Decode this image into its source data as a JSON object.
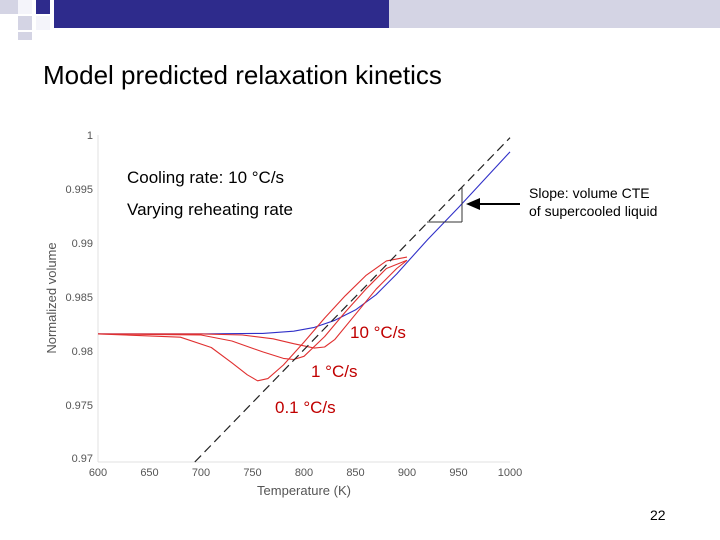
{
  "slide": {
    "title": "Model predicted relaxation kinetics",
    "page_number": "22",
    "accent_color": "#2e2b8c",
    "accent_light": "#d4d4e4"
  },
  "chart_data": {
    "type": "line",
    "xlabel": "Temperature (K)",
    "ylabel": "Normalized volume",
    "xlim": [
      600,
      1000
    ],
    "ylim": [
      0.97,
      1.0
    ],
    "x_ticks": [
      "600",
      "650",
      "700",
      "750",
      "800",
      "850",
      "900",
      "950",
      "1000"
    ],
    "y_ticks": [
      "1",
      "0.995",
      "0.99",
      "0.985",
      "0.98",
      "0.975",
      "0.97"
    ],
    "annotations": {
      "cooling": "Cooling rate: 10 °C/s",
      "reheating": "Varying reheating rate",
      "slope_line1": "Slope: volume CTE",
      "slope_line2": "of supercooled liquid"
    },
    "series": [
      {
        "name": "cooling 10 °C/s",
        "color": "#3030c8",
        "x": [
          600,
          700,
          760,
          790,
          810,
          830,
          850,
          870,
          890,
          900,
          920,
          950,
          1000
        ],
        "y": [
          0.98175,
          0.98175,
          0.9818,
          0.982,
          0.98235,
          0.983,
          0.98395,
          0.98535,
          0.98725,
          0.9883,
          0.9904,
          0.99335,
          0.99845
        ]
      },
      {
        "name": "10 °C/s",
        "label": "10 °C/s",
        "color": "#e03030",
        "x": [
          600,
          700,
          740,
          770,
          790,
          810,
          820,
          830,
          850,
          870,
          890,
          900
        ],
        "y": [
          0.98175,
          0.98175,
          0.98165,
          0.9813,
          0.98085,
          0.98045,
          0.98055,
          0.98125,
          0.98355,
          0.98585,
          0.98775,
          0.9885
        ]
      },
      {
        "name": "1 °C/s",
        "label": "1 °C/s",
        "color": "#e03030",
        "x": [
          600,
          700,
          730,
          760,
          780,
          790,
          800,
          820,
          840,
          860,
          880,
          900
        ],
        "y": [
          0.98175,
          0.98165,
          0.9811,
          0.9801,
          0.9795,
          0.9794,
          0.9797,
          0.9815,
          0.98375,
          0.98585,
          0.98775,
          0.9885
        ]
      },
      {
        "name": "0.1 °C/s",
        "label": "0.1 °C/s",
        "color": "#e03030",
        "x": [
          600,
          680,
          710,
          730,
          745,
          755,
          765,
          780,
          800,
          820,
          840,
          860,
          880,
          900
        ],
        "y": [
          0.98175,
          0.98145,
          0.9805,
          0.9791,
          0.978,
          0.97745,
          0.97765,
          0.9789,
          0.981,
          0.9832,
          0.98525,
          0.9871,
          0.98845,
          0.9888
        ]
      },
      {
        "name": "supercooled liquid",
        "color": "#222222",
        "dashed": true,
        "x": [
          694,
          1000
        ],
        "y": [
          0.97,
          0.99975
        ]
      }
    ]
  }
}
